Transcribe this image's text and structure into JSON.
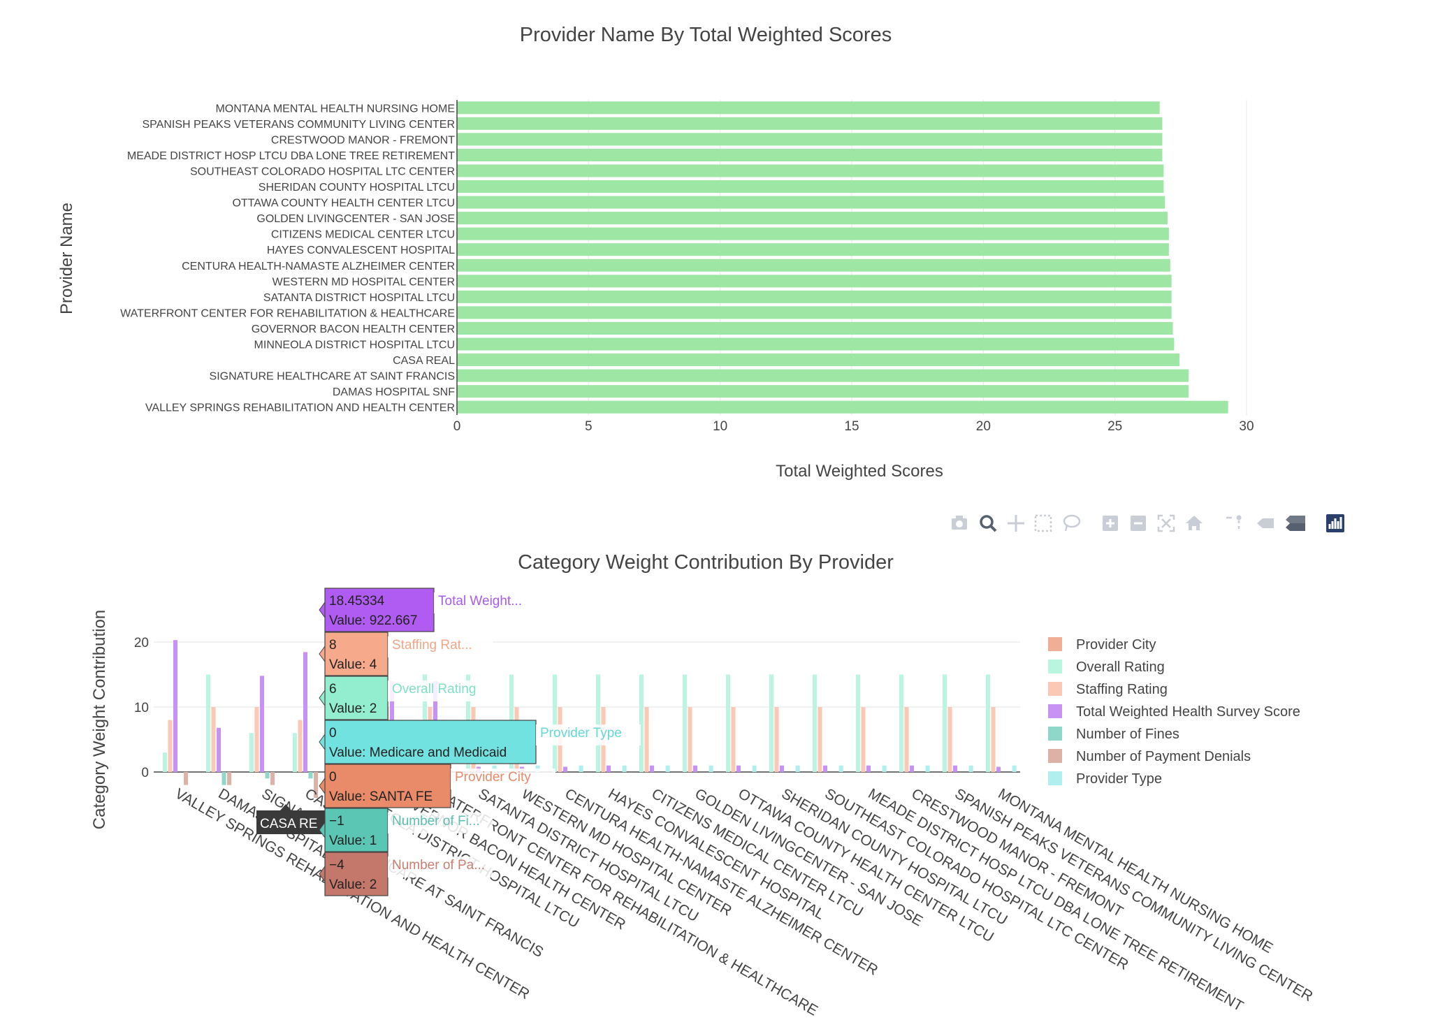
{
  "colors": {
    "top_bar": "#9ee6a4",
    "provider_city": "#f0ae96",
    "overall_rating": "#b9f5df",
    "staffing_rating": "#fac8b4",
    "total_weighted_health_survey_score": "#c892f5",
    "number_of_fines": "#8fd8c9",
    "number_of_payment_denials": "#deb1a7",
    "provider_type": "#b0efed"
  },
  "toolbar_icons": [
    "camera-icon",
    "zoom-icon",
    "pan-icon",
    "box-select-icon",
    "lasso-select-icon",
    "zoom-in-icon",
    "zoom-out-icon",
    "autoscale-icon",
    "reset-axes-icon",
    "spike-lines-icon",
    "hover-closest-icon",
    "hover-compare-icon",
    "plotly-logo-icon"
  ],
  "chart_data": [
    {
      "type": "bar",
      "orientation": "horizontal",
      "title": "Provider Name By Total Weighted Scores",
      "xlabel": "Total Weighted Scores",
      "ylabel": "Provider Name",
      "xlim": [
        0,
        30
      ],
      "xticks": [
        "0",
        "5",
        "10",
        "15",
        "20",
        "25",
        "30"
      ],
      "grid": true,
      "categories": [
        "VALLEY SPRINGS REHABILITATION AND HEALTH CENTER",
        "DAMAS HOSPITAL SNF",
        "SIGNATURE HEALTHCARE AT SAINT FRANCIS",
        "CASA REAL",
        "MINNEOLA DISTRICT HOSPITAL LTCU",
        "GOVERNOR BACON HEALTH CENTER",
        "WATERFRONT CENTER FOR REHABILITATION & HEALTHCARE",
        "SATANTA DISTRICT HOSPITAL LTCU",
        "WESTERN MD HOSPITAL CENTER",
        "CENTURA HEALTH-NAMASTE ALZHEIMER CENTER",
        "HAYES CONVALESCENT HOSPITAL",
        "CITIZENS MEDICAL CENTER LTCU",
        "GOLDEN LIVINGCENTER - SAN JOSE",
        "OTTAWA COUNTY HEALTH CENTER LTCU",
        "SHERIDAN COUNTY HOSPITAL LTCU",
        "SOUTHEAST COLORADO HOSPITAL LTC CENTER",
        "MEADE DISTRICT HOSP LTCU DBA LONE TREE RETIREMENT",
        "CRESTWOOD MANOR - FREMONT",
        "SPANISH PEAKS VETERANS COMMUNITY LIVING CENTER",
        "MONTANA MENTAL HEALTH NURSING HOME"
      ],
      "values": [
        29.3,
        27.8,
        27.8,
        27.45,
        27.25,
        27.2,
        27.15,
        27.15,
        27.15,
        27.1,
        27.05,
        27.05,
        27.0,
        26.9,
        26.85,
        26.85,
        26.8,
        26.8,
        26.8,
        26.7
      ]
    },
    {
      "type": "bar",
      "mode": "grouped",
      "title": "Category Weight Contribution By Provider",
      "ylabel": "Category Weight Contribution",
      "xlabel": "",
      "ylim": [
        -4.5,
        23
      ],
      "yticks": [
        "0",
        "10",
        "20"
      ],
      "legend_position": "right",
      "categories": [
        "VALLEY SPRINGS REHABILITATION AND HEALTH CENTER",
        "DAMAS HOSPITAL SNF",
        "SIGNATURE HEALTHCARE AT SAINT FRANCIS",
        "CASA REAL",
        "MINNEOLA DISTRICT HOSPITAL LTCU",
        "GOVERNOR BACON HEALTH CENTER",
        "WATERFRONT CENTER FOR REHABILITATION & HEALTHCARE",
        "SATANTA DISTRICT HOSPITAL LTCU",
        "WESTERN MD HOSPITAL CENTER",
        "CENTURA HEALTH-NAMASTE ALZHEIMER CENTER",
        "HAYES CONVALESCENT HOSPITAL",
        "CITIZENS MEDICAL CENTER LTCU",
        "GOLDEN LIVINGCENTER - SAN JOSE",
        "OTTAWA COUNTY HEALTH CENTER LTCU",
        "SHERIDAN COUNTY HOSPITAL LTCU",
        "SOUTHEAST COLORADO HOSPITAL LTC CENTER",
        "MEADE DISTRICT HOSP LTCU DBA LONE TREE RETIREMENT",
        "CRESTWOOD MANOR - FREMONT",
        "SPANISH PEAKS VETERANS COMMUNITY LIVING CENTER",
        "MONTANA MENTAL HEALTH NURSING HOME"
      ],
      "series": [
        {
          "name": "Provider City",
          "color_key": "provider_city",
          "values": [
            0,
            0,
            0,
            0,
            0,
            0,
            0,
            0,
            0,
            0,
            0,
            0,
            0,
            0,
            0,
            0,
            0,
            0,
            0,
            0
          ]
        },
        {
          "name": "Overall Rating",
          "color_key": "overall_rating",
          "values": [
            3,
            15,
            6,
            6,
            15,
            15,
            15,
            15,
            15,
            15,
            15,
            15,
            15,
            15,
            15,
            15,
            15,
            15,
            15,
            15
          ]
        },
        {
          "name": "Staffing Rating",
          "color_key": "staffing_rating",
          "values": [
            8,
            10,
            10,
            8,
            10,
            10,
            10,
            10,
            10,
            10,
            10,
            10,
            10,
            10,
            10,
            10,
            10,
            10,
            10,
            10
          ]
        },
        {
          "name": "Total Weighted Health Survey Score",
          "color_key": "total_weighted_health_survey_score",
          "values": [
            20.3,
            6.8,
            14.8,
            18.45334,
            15,
            14,
            14,
            0.8,
            0.8,
            0.8,
            1,
            1,
            1,
            1,
            1,
            1,
            1,
            1,
            1,
            0.8
          ]
        },
        {
          "name": "Number of Fines",
          "color_key": "number_of_fines",
          "values": [
            0,
            -2,
            -1,
            -1,
            0,
            0,
            0,
            0,
            0,
            0,
            0,
            0,
            0,
            0,
            0,
            0,
            0,
            0,
            0,
            0
          ]
        },
        {
          "name": "Number of Payment Denials",
          "color_key": "number_of_payment_denials",
          "values": [
            -2,
            -2,
            -2,
            -4,
            0,
            0,
            0,
            0,
            0,
            0,
            0,
            0,
            0,
            0,
            0,
            0,
            0,
            0,
            0,
            0
          ]
        },
        {
          "name": "Provider Type",
          "color_key": "provider_type",
          "values": [
            0,
            0,
            0,
            0,
            0,
            0,
            0,
            1,
            1,
            1,
            1,
            1,
            1,
            1,
            1,
            1,
            1,
            1,
            1,
            1
          ]
        }
      ],
      "hover": {
        "category_label": "CASA RE",
        "items": [
          {
            "value": "18.45334",
            "detail": "Value: 922.667",
            "name": "Total Weight...",
            "color_key": "total_weighted_health_survey_score",
            "box": "#b05cf2",
            "namecolor": "#a65cf0"
          },
          {
            "value": "8",
            "detail": "Value: 4",
            "name": "Staffing Rat...",
            "color_key": "staffing_rating",
            "box": "#f7a98c",
            "namecolor": "#f3a587"
          },
          {
            "value": "6",
            "detail": "Value: 2",
            "name": "Overall Rating",
            "color_key": "overall_rating",
            "box": "#93eecf",
            "namecolor": "#7fe0c4"
          },
          {
            "value": "0",
            "detail": "Value: Medicare and Medicaid",
            "name": "Provider Type",
            "color_key": "provider_type",
            "box": "#72e2e0",
            "namecolor": "#65d8d8"
          },
          {
            "value": "0",
            "detail": "Value: SANTA FE",
            "name": "Provider City",
            "color_key": "provider_city",
            "box": "#e98b68",
            "namecolor": "#e68a68"
          },
          {
            "value": "−1",
            "detail": "Value: 1",
            "name": "Number of Fi...",
            "color_key": "number_of_fines",
            "box": "#5cc6b4",
            "namecolor": "#5cbfae"
          },
          {
            "value": "−4",
            "detail": "Value: 2",
            "name": "Number of Pa...",
            "color_key": "number_of_payment_denials",
            "box": "#c4786c",
            "namecolor": "#c87f72"
          }
        ]
      }
    }
  ]
}
